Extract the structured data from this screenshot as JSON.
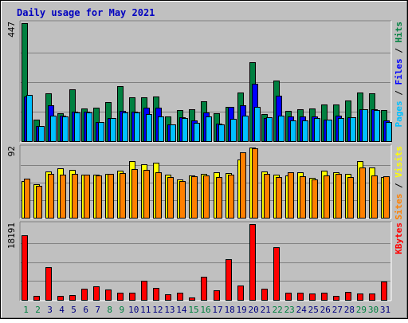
{
  "chart_data": {
    "type": "bar",
    "title": "Daily usage for May 2021",
    "categories": [
      "1",
      "2",
      "3",
      "4",
      "5",
      "6",
      "7",
      "8",
      "9",
      "10",
      "11",
      "12",
      "13",
      "14",
      "15",
      "16",
      "17",
      "18",
      "19",
      "20",
      "21",
      "22",
      "23",
      "24",
      "25",
      "26",
      "27",
      "28",
      "29",
      "30",
      "31"
    ],
    "weekend_days": [
      "1",
      "2",
      "8",
      "9",
      "15",
      "16",
      "22",
      "23",
      "29",
      "30"
    ],
    "colors": {
      "title": "#0000c0",
      "background": "#c0c0c0",
      "hits": "#008040",
      "files": "#0000ff",
      "pages": "#00c0ff",
      "visits": "#ffff00",
      "sites": "#ff8000",
      "kbytes": "#ff0000",
      "weekday_label": "#000080",
      "weekend_label": "#008040"
    },
    "panels": [
      {
        "id": "hits_files_pages",
        "ymax": 447,
        "ymax_label": "447",
        "side_label": [
          {
            "text": "Pages",
            "color": "#00c0ff"
          },
          {
            "text": " / ",
            "color": "#000000"
          },
          {
            "text": "Files",
            "color": "#0000ff"
          },
          {
            "text": " / ",
            "color": "#000000"
          },
          {
            "text": "Hits",
            "color": "#008040"
          }
        ],
        "series": [
          {
            "name": "Hits",
            "color": "#008040",
            "offset": 0,
            "values": [
              447,
              82,
              180,
              107,
              196,
              123,
              128,
              147,
              207,
              165,
              165,
              169,
              95,
              118,
              120,
              150,
              107,
              129,
              183,
              300,
              103,
              230,
              116,
              121,
              125,
              138,
              140,
              153,
              183,
              180,
              117
            ]
          },
          {
            "name": "Files",
            "color": "#0000ff",
            "offset": 1,
            "values": [
              170,
              58,
              136,
              98,
              113,
              111,
              73,
              89,
              115,
              112,
              126,
              127,
              62,
              91,
              80,
              109,
              67,
              131,
              136,
              216,
              87,
              172,
              95,
              93,
              94,
              83,
              96,
              91,
              122,
              122,
              78
            ]
          },
          {
            "name": "Pages",
            "color": "#00c0ff",
            "offset": 2,
            "values": [
              175,
              56,
              98,
              95,
              108,
              110,
              71,
              88,
              110,
              110,
              103,
              95,
              62,
              87,
              68,
              95,
              64,
              85,
              98,
              130,
              90,
              96,
              80,
              78,
              87,
              81,
              87,
              90,
              122,
              118,
              73
            ]
          }
        ]
      },
      {
        "id": "visits_sites",
        "ymax": 92,
        "ymax_label": "92",
        "side_label": [
          {
            "text": "Sites",
            "color": "#ff8000"
          },
          {
            "text": " / ",
            "color": "#000000"
          },
          {
            "text": "Visits",
            "color": "#ffff00"
          }
        ],
        "series": [
          {
            "name": "Visits",
            "color": "#ffff00",
            "offset": 0,
            "values": [
              48,
              44,
              61,
              65,
              63,
              56,
              56,
              58,
              62,
              74,
              70,
              72,
              56,
              50,
              55,
              58,
              60,
              59,
              76,
              92,
              61,
              56,
              55,
              60,
              52,
              62,
              60,
              57,
              74,
              66,
              53
            ]
          },
          {
            "name": "Sites",
            "color": "#ff8000",
            "offset": 1,
            "values": [
              51,
              42,
              57,
              56,
              58,
              56,
              55,
              58,
              59,
              64,
              63,
              60,
              53,
              48,
              54,
              55,
              53,
              56,
              86,
              91,
              58,
              53,
              60,
              54,
              50,
              55,
              57,
              53,
              66,
              55,
              54
            ]
          }
        ]
      },
      {
        "id": "kbytes",
        "ymax": 18191,
        "ymax_label": "18191",
        "side_label": [
          {
            "text": "KBytes",
            "color": "#ff0000"
          }
        ],
        "series": [
          {
            "name": "KBytes",
            "color": "#ff0000",
            "offset": 0,
            "values": [
              15500,
              1000,
              7800,
              950,
              1200,
              2700,
              3200,
              2400,
              1700,
              1700,
              4500,
              2800,
              1300,
              1800,
              600,
              5600,
              2300,
              9800,
              3500,
              18191,
              2700,
              12700,
              1700,
              1800,
              1600,
              1800,
              1000,
              1900,
              1600,
              1500,
              4400
            ]
          }
        ]
      }
    ]
  }
}
